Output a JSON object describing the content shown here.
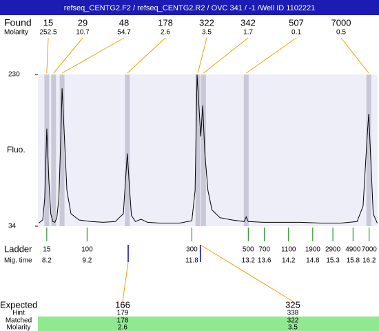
{
  "title": "refseq_CENTG2.F2 / refseq_CENTG2.R2 / OVC 341  / -1 /Well ID 1102221",
  "found": {
    "label": "Found",
    "molarity_label": "Molarity",
    "peaks": [
      {
        "size": 15,
        "molarity": 252.5,
        "time": 8.2
      },
      {
        "size": 29,
        "molarity": 10.7,
        "time": 8.37
      },
      {
        "size": 48,
        "molarity": 54.7,
        "time": 8.58
      },
      {
        "size": 178,
        "molarity": 2.6,
        "time": 10.2
      },
      {
        "size": 322,
        "molarity": 3.5,
        "time": 11.95
      },
      {
        "size": 342,
        "molarity": 1.7,
        "time": 12.09
      },
      {
        "size": 507,
        "molarity": 0.1,
        "time": 13.15
      },
      {
        "size": 7000,
        "molarity": 0.5,
        "time": 16.19
      }
    ]
  },
  "chart_data": {
    "type": "line",
    "ylabel": "Fluo.",
    "color": "#000000",
    "x": [
      8.0,
      8.1,
      8.15,
      8.2,
      8.25,
      8.3,
      8.35,
      8.4,
      8.45,
      8.5,
      8.55,
      8.58,
      8.62,
      8.7,
      8.8,
      9.0,
      9.3,
      9.6,
      9.9,
      10.1,
      10.15,
      10.2,
      10.25,
      10.3,
      10.4,
      10.54,
      10.7,
      11.0,
      11.5,
      11.8,
      11.88,
      11.93,
      11.97,
      12.02,
      12.07,
      12.12,
      12.2,
      12.3,
      12.5,
      12.8,
      13.1,
      13.15,
      13.2,
      13.6,
      14.0,
      14.5,
      15.0,
      15.5,
      15.9,
      16.05,
      16.15,
      16.19,
      16.25,
      16.3,
      16.4
    ],
    "values": [
      38,
      42,
      70,
      160,
      95,
      50,
      40,
      39,
      45,
      70,
      150,
      212,
      170,
      80,
      50,
      42,
      40,
      39,
      40,
      50,
      90,
      128,
      85,
      48,
      40,
      43,
      39,
      38,
      38,
      41,
      80,
      230,
      195,
      150,
      190,
      130,
      80,
      55,
      45,
      42,
      40,
      46,
      40,
      39,
      39,
      39,
      38,
      38,
      40,
      60,
      150,
      179,
      110,
      50,
      38
    ],
    "xlim": [
      7.98,
      16.41
    ],
    "ylim": [
      34,
      230
    ],
    "yticks": [
      34,
      230
    ]
  },
  "ladder": {
    "label": "Ladder",
    "time_label": "Mig. time",
    "sizes": [
      15,
      100,
      300,
      500,
      700,
      1100,
      1900,
      2900,
      4900,
      7000
    ],
    "times": [
      8.2,
      9.2,
      11.8,
      13.2,
      13.6,
      14.2,
      14.8,
      15.3,
      15.8,
      16.2
    ]
  },
  "expected": {
    "label": "Expected",
    "hint_label": "Hint",
    "matched_label": "Matched",
    "molarity_label": "Molarity",
    "columns": [
      {
        "expected": 166,
        "hint": 179,
        "matched": 178,
        "molarity": 2.6,
        "time": 10.22
      },
      {
        "expected": 325,
        "hint": 338,
        "matched": 322,
        "molarity": 3.5,
        "time": 12.01
      }
    ]
  }
}
